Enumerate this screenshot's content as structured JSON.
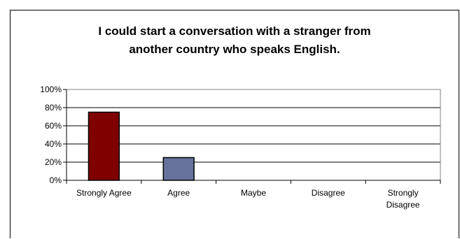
{
  "chart_data": {
    "type": "bar",
    "title_lines": [
      "I could start a conversation with a stranger from",
      "another country who speaks English."
    ],
    "categories": [
      [
        "Strongly Agree"
      ],
      [
        "Agree"
      ],
      [
        "Maybe"
      ],
      [
        "Disagree"
      ],
      [
        "Strongly",
        "Disagree"
      ]
    ],
    "values": [
      75,
      25,
      0,
      0,
      0
    ],
    "bar_colors": [
      "#800000",
      "#66729a",
      "#66729a",
      "#66729a",
      "#66729a"
    ],
    "yticks": [
      "0%",
      "20%",
      "40%",
      "60%",
      "80%",
      "100%"
    ],
    "ylim": [
      0,
      100
    ],
    "grid": true,
    "xlabel": "",
    "ylabel": ""
  }
}
